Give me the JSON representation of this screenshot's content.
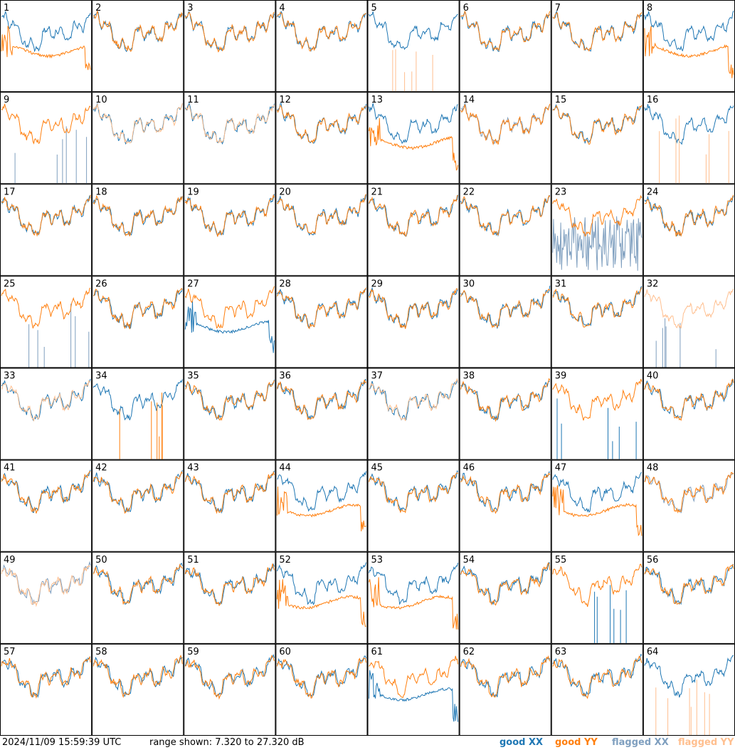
{
  "footer": {
    "timestamp": "2024/11/09 15:59:39 UTC",
    "range_text": "range shown: 7.320 to 27.320 dB"
  },
  "colors": {
    "good_xx": "#1f77b4",
    "good_yy": "#ff7f0e",
    "flagged_xx": "#7f9fbf",
    "flagged_yy": "#ffbf8f"
  },
  "chart_data": {
    "type": "line",
    "ylim": [
      7.32,
      27.32
    ],
    "yunit": "dB",
    "grid_rows": 8,
    "grid_cols": 8,
    "legend": [
      {
        "name": "good XX",
        "color": "#1f77b4"
      },
      {
        "name": "good YY",
        "color": "#ff7f0e"
      },
      {
        "name": "flagged XX",
        "color": "#7f9fbf"
      },
      {
        "name": "flagged YY",
        "color": "#ffbf8f"
      }
    ],
    "tiles": [
      {
        "label": "1",
        "xx": "good",
        "yy": "good",
        "yy_style": "flat"
      },
      {
        "label": "2",
        "xx": "good",
        "yy": "good"
      },
      {
        "label": "3",
        "xx": "good",
        "yy": "good"
      },
      {
        "label": "4",
        "xx": "good",
        "yy": "good"
      },
      {
        "label": "5",
        "xx": "good",
        "yy": "flagged",
        "yy_style": "spikes"
      },
      {
        "label": "6",
        "xx": "good",
        "yy": "good"
      },
      {
        "label": "7",
        "xx": "good",
        "yy": "good"
      },
      {
        "label": "8",
        "xx": "good",
        "yy": "good",
        "yy_style": "flat"
      },
      {
        "label": "9",
        "xx": "flagged",
        "yy": "good",
        "xx_style": "spikes"
      },
      {
        "label": "10",
        "xx": "good",
        "yy": "flagged"
      },
      {
        "label": "11",
        "xx": "good",
        "yy": "flagged"
      },
      {
        "label": "12",
        "xx": "good",
        "yy": "good"
      },
      {
        "label": "13",
        "xx": "good",
        "yy": "good",
        "yy_style": "flat"
      },
      {
        "label": "14",
        "xx": "flagged",
        "yy": "good"
      },
      {
        "label": "15",
        "xx": "good",
        "yy": "good"
      },
      {
        "label": "16",
        "xx": "good",
        "yy": "flagged",
        "yy_style": "spikes"
      },
      {
        "label": "17",
        "xx": "good",
        "yy": "good"
      },
      {
        "label": "18",
        "xx": "good",
        "yy": "good"
      },
      {
        "label": "19",
        "xx": "good",
        "yy": "good"
      },
      {
        "label": "20",
        "xx": "good",
        "yy": "good"
      },
      {
        "label": "21",
        "xx": "good",
        "yy": "good"
      },
      {
        "label": "22",
        "xx": "good",
        "yy": "good"
      },
      {
        "label": "23",
        "xx": "flagged",
        "yy": "good",
        "xx_style": "noisy"
      },
      {
        "label": "24",
        "xx": "good",
        "yy": "good"
      },
      {
        "label": "25",
        "xx": "flagged",
        "yy": "good",
        "xx_style": "spikes"
      },
      {
        "label": "26",
        "xx": "good",
        "yy": "good"
      },
      {
        "label": "27",
        "xx": "good",
        "yy": "good",
        "xx_style": "flat"
      },
      {
        "label": "28",
        "xx": "good",
        "yy": "good"
      },
      {
        "label": "29",
        "xx": "good",
        "yy": "good"
      },
      {
        "label": "30",
        "xx": "good",
        "yy": "good"
      },
      {
        "label": "31",
        "xx": "good",
        "yy": "good"
      },
      {
        "label": "32",
        "xx": "flagged",
        "yy": "flagged",
        "xx_style": "spikes"
      },
      {
        "label": "33",
        "xx": "good",
        "yy": "flagged"
      },
      {
        "label": "34",
        "xx": "good",
        "yy": "good",
        "yy_style": "spikes"
      },
      {
        "label": "35",
        "xx": "good",
        "yy": "good"
      },
      {
        "label": "36",
        "xx": "good",
        "yy": "good"
      },
      {
        "label": "37",
        "xx": "good",
        "yy": "flagged"
      },
      {
        "label": "38",
        "xx": "good",
        "yy": "good"
      },
      {
        "label": "39",
        "xx": "good",
        "yy": "good",
        "xx_style": "spikes"
      },
      {
        "label": "40",
        "xx": "good",
        "yy": "good"
      },
      {
        "label": "41",
        "xx": "good",
        "yy": "good"
      },
      {
        "label": "42",
        "xx": "good",
        "yy": "good"
      },
      {
        "label": "43",
        "xx": "good",
        "yy": "good"
      },
      {
        "label": "44",
        "xx": "good",
        "yy": "good",
        "yy_style": "flat"
      },
      {
        "label": "45",
        "xx": "good",
        "yy": "good"
      },
      {
        "label": "46",
        "xx": "good",
        "yy": "good"
      },
      {
        "label": "47",
        "xx": "good",
        "yy": "good",
        "yy_style": "flat"
      },
      {
        "label": "48",
        "xx": "flagged",
        "yy": "good"
      },
      {
        "label": "49",
        "xx": "flagged",
        "yy": "flagged"
      },
      {
        "label": "50",
        "xx": "good",
        "yy": "good"
      },
      {
        "label": "51",
        "xx": "good",
        "yy": "good"
      },
      {
        "label": "52",
        "xx": "good",
        "yy": "good",
        "yy_style": "flat"
      },
      {
        "label": "53",
        "xx": "good",
        "yy": "good",
        "yy_style": "flat"
      },
      {
        "label": "54",
        "xx": "good",
        "yy": "good"
      },
      {
        "label": "55",
        "xx": "good",
        "yy": "good",
        "xx_style": "spikes"
      },
      {
        "label": "56",
        "xx": "good",
        "yy": "good"
      },
      {
        "label": "57",
        "xx": "good",
        "yy": "good"
      },
      {
        "label": "58",
        "xx": "good",
        "yy": "good"
      },
      {
        "label": "59",
        "xx": "good",
        "yy": "good"
      },
      {
        "label": "60",
        "xx": "good",
        "yy": "good"
      },
      {
        "label": "61",
        "xx": "good",
        "yy": "good",
        "xx_style": "flat"
      },
      {
        "label": "62",
        "xx": "good",
        "yy": "good"
      },
      {
        "label": "63",
        "xx": "good",
        "yy": "good"
      },
      {
        "label": "64",
        "xx": "good",
        "yy": "flagged",
        "yy_style": "spikes"
      }
    ]
  }
}
